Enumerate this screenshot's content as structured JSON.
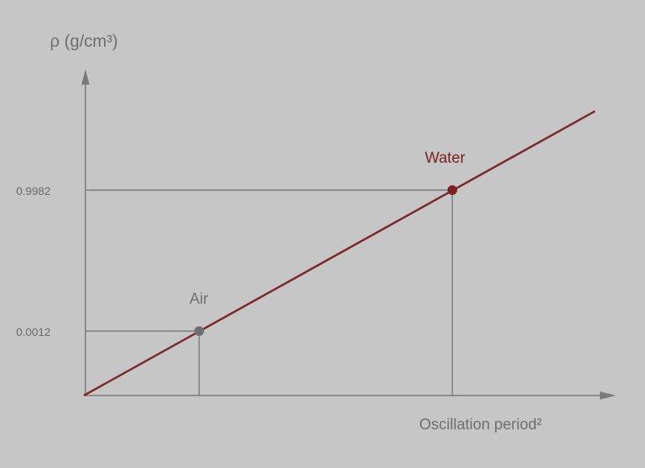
{
  "labels": {
    "y_axis": "ρ (g/cm³)",
    "x_axis": "Oscillation period²",
    "tick_water": "0.9982",
    "tick_air": "0.0012",
    "air": "Air",
    "water": "Water"
  },
  "colors": {
    "background": "#c6c6c6",
    "axis": "#7a7a7a",
    "line": "#7a2a2a",
    "air_point": "#6f6f6f",
    "water_point": "#7a2020"
  },
  "points": [
    {
      "name": "Air",
      "density": 0.0012
    },
    {
      "name": "Water",
      "density": 0.9982
    }
  ]
}
